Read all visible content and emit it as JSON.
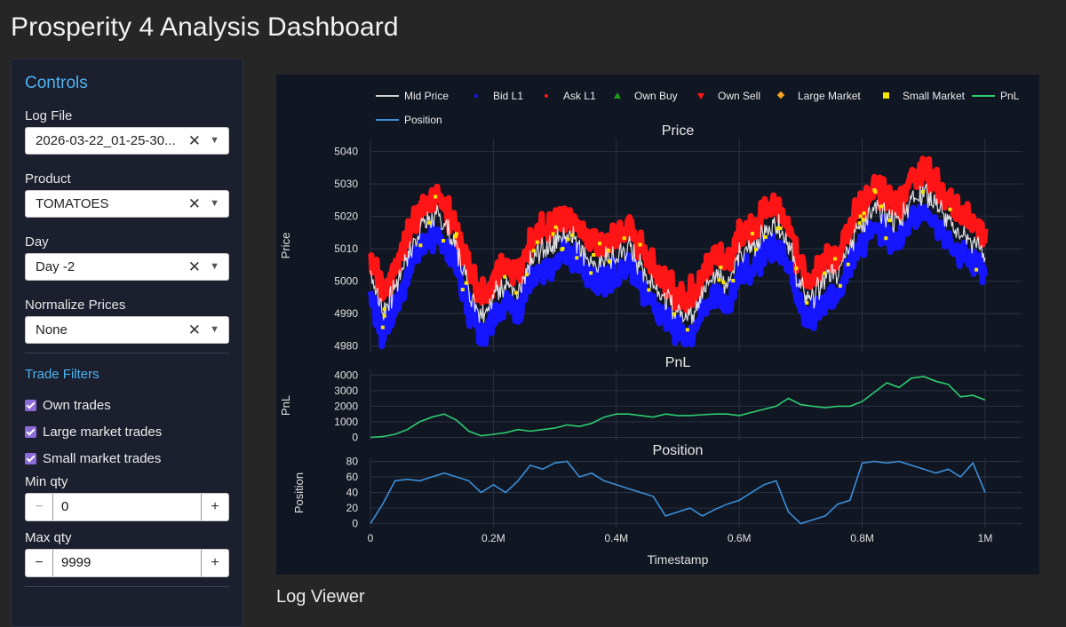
{
  "app": {
    "title": "Prosperity 4 Analysis Dashboard"
  },
  "sidebar": {
    "title": "Controls",
    "log_file": {
      "label": "Log File",
      "value": "2026-03-22_01-25-30..."
    },
    "product": {
      "label": "Product",
      "value": "TOMATOES"
    },
    "day": {
      "label": "Day",
      "value": "Day -2"
    },
    "normalize": {
      "label": "Normalize Prices",
      "value": "None"
    },
    "filters_title": "Trade Filters",
    "filters": [
      {
        "label": "Own trades",
        "checked": true
      },
      {
        "label": "Large market trades",
        "checked": true
      },
      {
        "label": "Small market trades",
        "checked": true
      }
    ],
    "min_qty": {
      "label": "Min qty",
      "value": "0",
      "minus": "−",
      "plus": "+"
    },
    "max_qty": {
      "label": "Max qty",
      "value": "9999",
      "minus": "−",
      "plus": "+"
    },
    "clear_icon": "close-icon",
    "chevron_icon": "chevron-down-icon"
  },
  "chart_data": {
    "type": "line",
    "legend": [
      {
        "name": "Mid Price",
        "color": "#cfcfcf",
        "symbol": "line"
      },
      {
        "name": "Bid L1",
        "color": "#1515ff",
        "symbol": "dot"
      },
      {
        "name": "Ask L1",
        "color": "#ff1515",
        "symbol": "dot"
      },
      {
        "name": "Own Buy",
        "color": "#1a9e1a",
        "symbol": "triangle-up"
      },
      {
        "name": "Own Sell",
        "color": "#ff1515",
        "symbol": "triangle-down"
      },
      {
        "name": "Large Market",
        "color": "#f5a623",
        "symbol": "diamond"
      },
      {
        "name": "Small Market",
        "color": "#f5e400",
        "symbol": "square"
      },
      {
        "name": "PnL",
        "color": "#2ecc71",
        "symbol": "line"
      },
      {
        "name": "Position",
        "color": "#3a8fd9",
        "symbol": "line"
      }
    ],
    "xlabel": "Timestamp",
    "x_ticks": [
      "0",
      "0.2M",
      "0.4M",
      "0.6M",
      "0.8M",
      "1M"
    ],
    "xlim": [
      0,
      1000000
    ],
    "panels": [
      {
        "title": "Price",
        "ylabel": "Price",
        "ylim": [
          4978,
          5044
        ],
        "y_ticks": [
          4980,
          4990,
          5000,
          5010,
          5020,
          5030,
          5040
        ],
        "x": [
          0,
          20000,
          40000,
          60000,
          80000,
          100000,
          120000,
          140000,
          160000,
          180000,
          200000,
          220000,
          240000,
          260000,
          280000,
          300000,
          320000,
          340000,
          360000,
          380000,
          400000,
          420000,
          440000,
          460000,
          480000,
          500000,
          520000,
          540000,
          560000,
          580000,
          600000,
          620000,
          640000,
          660000,
          680000,
          700000,
          720000,
          740000,
          760000,
          780000,
          800000,
          820000,
          840000,
          860000,
          880000,
          900000,
          920000,
          940000,
          960000,
          980000,
          1000000
        ],
        "mid": [
          5003,
          4990,
          4998,
          5008,
          5016,
          5020,
          5018,
          5010,
          4998,
          4990,
          4995,
          5000,
          4995,
          5005,
          5010,
          5012,
          5015,
          5012,
          5005,
          5006,
          5008,
          5010,
          5005,
          5000,
          4994,
          4990,
          4990,
          4996,
          5003,
          5000,
          5008,
          5010,
          5015,
          5018,
          5012,
          4997,
          4995,
          5000,
          5003,
          5012,
          5018,
          5022,
          5020,
          5018,
          5026,
          5028,
          5024,
          5018,
          5015,
          5012,
          5008
        ],
        "spread_half": 6
      },
      {
        "title": "PnL",
        "ylabel": "PnL",
        "ylim": [
          -200,
          4300
        ],
        "y_ticks": [
          0,
          1000,
          2000,
          3000,
          4000
        ],
        "x": [
          0,
          20000,
          40000,
          60000,
          80000,
          100000,
          120000,
          140000,
          160000,
          180000,
          200000,
          220000,
          240000,
          260000,
          280000,
          300000,
          320000,
          340000,
          360000,
          380000,
          400000,
          420000,
          440000,
          460000,
          480000,
          500000,
          520000,
          540000,
          560000,
          580000,
          600000,
          620000,
          640000,
          660000,
          680000,
          700000,
          720000,
          740000,
          760000,
          780000,
          800000,
          820000,
          840000,
          860000,
          880000,
          900000,
          920000,
          940000,
          960000,
          980000,
          1000000
        ],
        "values": [
          0,
          50,
          200,
          500,
          1000,
          1300,
          1500,
          1100,
          400,
          100,
          200,
          300,
          500,
          400,
          500,
          600,
          800,
          700,
          900,
          1300,
          1500,
          1500,
          1400,
          1300,
          1500,
          1400,
          1400,
          1450,
          1500,
          1500,
          1400,
          1600,
          1800,
          2000,
          2500,
          2100,
          2000,
          1900,
          2000,
          2000,
          2300,
          2900,
          3500,
          3200,
          3800,
          3900,
          3600,
          3400,
          2600,
          2700,
          2400
        ]
      },
      {
        "title": "Position",
        "ylabel": "Position",
        "ylim": [
          -5,
          84
        ],
        "y_ticks": [
          0,
          20,
          40,
          60,
          80
        ],
        "x": [
          0,
          20000,
          40000,
          60000,
          80000,
          100000,
          120000,
          140000,
          160000,
          180000,
          200000,
          220000,
          240000,
          260000,
          280000,
          300000,
          320000,
          340000,
          360000,
          380000,
          400000,
          420000,
          440000,
          460000,
          480000,
          500000,
          520000,
          540000,
          560000,
          580000,
          600000,
          620000,
          640000,
          660000,
          680000,
          700000,
          720000,
          740000,
          760000,
          780000,
          800000,
          820000,
          840000,
          860000,
          880000,
          900000,
          920000,
          940000,
          960000,
          980000,
          1000000
        ],
        "values": [
          0,
          25,
          55,
          57,
          55,
          60,
          65,
          60,
          55,
          40,
          50,
          40,
          55,
          75,
          70,
          78,
          80,
          60,
          65,
          55,
          50,
          45,
          40,
          35,
          10,
          15,
          20,
          10,
          18,
          25,
          30,
          40,
          50,
          55,
          15,
          0,
          5,
          10,
          25,
          30,
          78,
          80,
          78,
          80,
          75,
          70,
          65,
          70,
          60,
          78,
          40
        ]
      }
    ]
  },
  "log_viewer": {
    "title": "Log Viewer"
  }
}
